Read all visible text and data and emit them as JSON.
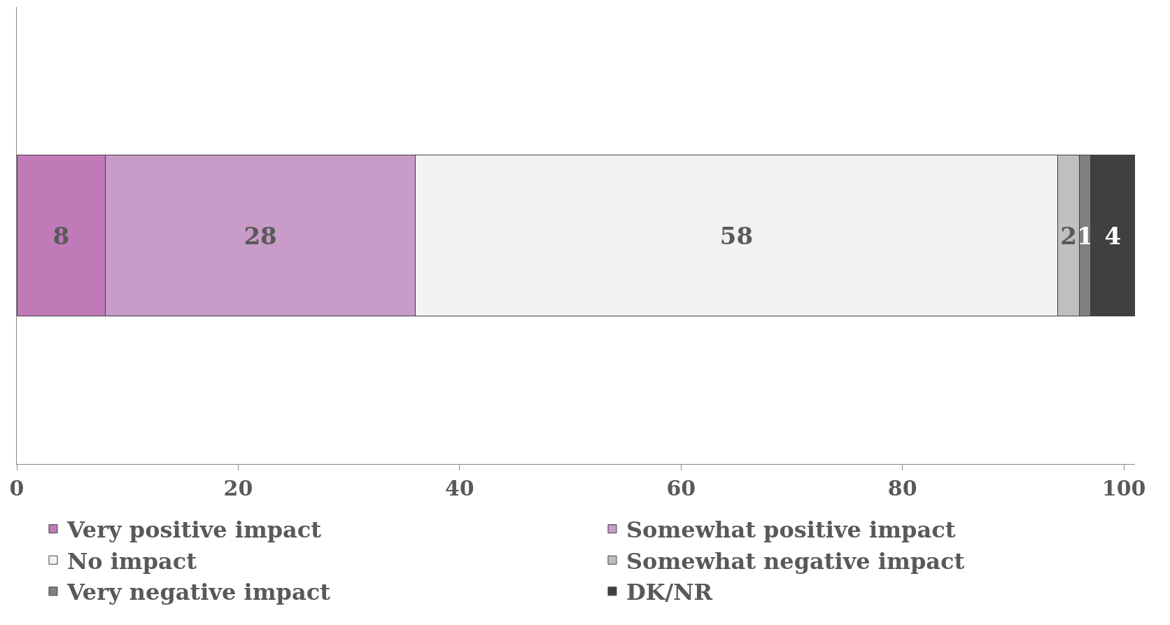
{
  "chart_data": {
    "type": "bar",
    "orientation": "horizontal",
    "stacked": true,
    "categories": [
      null
    ],
    "series": [
      {
        "name": "Very positive impact",
        "color": "#c07ab8",
        "values": [
          8
        ]
      },
      {
        "name": "Somewhat positive impact",
        "color": "#c89bc8",
        "values": [
          28
        ]
      },
      {
        "name": "No impact",
        "color": "#f2f2f2",
        "values": [
          58
        ]
      },
      {
        "name": "Somewhat negative impact",
        "color": "#bfbfbf",
        "values": [
          2
        ]
      },
      {
        "name": "Very negative impact",
        "color": "#808080",
        "values": [
          1
        ]
      },
      {
        "name": "DK/NR",
        "color": "#404040",
        "values": [
          4
        ]
      }
    ],
    "xlim": [
      0,
      101
    ],
    "xticks": [
      0,
      20,
      40,
      60,
      80,
      100
    ],
    "grid": false,
    "legend": "bottom",
    "data_labels": true
  }
}
